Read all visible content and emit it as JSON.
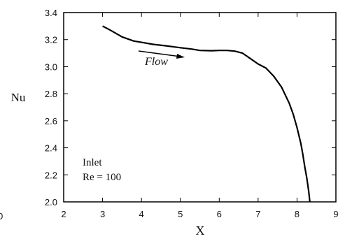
{
  "chart_data": {
    "type": "line",
    "title": "",
    "xlabel": "X",
    "ylabel": "Nu",
    "xlim": [
      2,
      9
    ],
    "ylim": [
      2.0,
      3.4
    ],
    "xticks": [
      "2",
      "3",
      "4",
      "5",
      "6",
      "7",
      "8",
      "9"
    ],
    "yticks": [
      "2.0",
      "2.2",
      "2.4",
      "2.6",
      "2.8",
      "3.0",
      "3.2",
      "3.4"
    ],
    "edge_labels": {
      "left": "0"
    },
    "grid": false,
    "annotations": {
      "flow": "Flow",
      "inlet": "Inlet",
      "re": "Re = 100"
    },
    "series": [
      {
        "color": "#000000",
        "x": [
          3.0,
          3.2,
          3.5,
          3.8,
          4.0,
          4.3,
          4.6,
          5.0,
          5.3,
          5.5,
          5.8,
          6.0,
          6.2,
          6.4,
          6.6,
          6.8,
          7.0,
          7.2,
          7.4,
          7.6,
          7.8,
          7.9,
          8.0,
          8.1,
          8.15,
          8.2,
          8.25,
          8.3,
          8.33
        ],
        "y": [
          3.3,
          3.27,
          3.22,
          3.19,
          3.18,
          3.165,
          3.155,
          3.14,
          3.13,
          3.12,
          3.118,
          3.12,
          3.12,
          3.115,
          3.1,
          3.06,
          3.02,
          2.99,
          2.93,
          2.85,
          2.73,
          2.65,
          2.55,
          2.43,
          2.35,
          2.26,
          2.18,
          2.08,
          2.0
        ]
      }
    ]
  }
}
